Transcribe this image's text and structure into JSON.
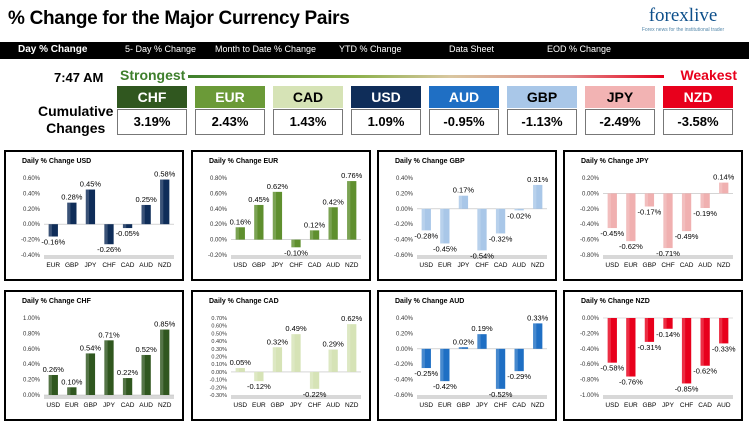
{
  "header": {
    "title": "% Change for the Major Currency Pairs",
    "logo_text": "forexlive",
    "logo_tagline": "Forex news for the institutional trader"
  },
  "tabs": [
    {
      "label": "Day % Change",
      "active": true
    },
    {
      "label": "5- Day % Change",
      "active": false
    },
    {
      "label": "Month to Date % Change",
      "active": false
    },
    {
      "label": "YTD % Change",
      "active": false
    },
    {
      "label": "Data Sheet",
      "active": false
    },
    {
      "label": "EOD % Change",
      "active": false
    }
  ],
  "summary": {
    "time": "7:47 AM",
    "strongest_label": "Strongest",
    "weakest_label": "Weakest",
    "cumulative_label_line1": "Cumulative",
    "cumulative_label_line2": "Changes",
    "rankings": [
      {
        "currency": "CHF",
        "value": "3.19%",
        "color": "#30571f"
      },
      {
        "currency": "EUR",
        "value": "2.43%",
        "color": "#6b9a38"
      },
      {
        "currency": "CAD",
        "value": "1.43%",
        "color": "#d6e3b6"
      },
      {
        "currency": "USD",
        "value": "1.09%",
        "color": "#0f2d59"
      },
      {
        "currency": "AUD",
        "value": "-0.95%",
        "color": "#1f6fc4"
      },
      {
        "currency": "GBP",
        "value": "-1.13%",
        "color": "#a9c7e8"
      },
      {
        "currency": "JPY",
        "value": "-2.49%",
        "color": "#f2b3b3"
      },
      {
        "currency": "NZD",
        "value": "-3.58%",
        "color": "#e8001c"
      }
    ]
  },
  "chart_data": [
    {
      "type": "bar",
      "title": "Daily % Change USD",
      "categories": [
        "EUR",
        "GBP",
        "JPY",
        "CHF",
        "CAD",
        "AUD",
        "NZD"
      ],
      "values": [
        -0.16,
        0.28,
        0.45,
        -0.26,
        -0.05,
        0.25,
        0.58
      ],
      "ylim": [
        -0.4,
        0.6
      ],
      "yticks": [
        "-0.40%",
        "-0.20%",
        "0.00%",
        "0.20%",
        "0.40%",
        "0.60%"
      ],
      "colors": {
        "pos": "#0f2d59",
        "neg": "#0f2d59"
      }
    },
    {
      "type": "bar",
      "title": "Daily % Change EUR",
      "categories": [
        "USD",
        "GBP",
        "JPY",
        "CHF",
        "CAD",
        "AUD",
        "NZD"
      ],
      "values": [
        0.16,
        0.45,
        0.62,
        -0.1,
        0.12,
        0.42,
        0.76
      ],
      "ylim": [
        -0.2,
        0.8
      ],
      "yticks": [
        "-0.20%",
        "0.00%",
        "0.20%",
        "0.40%",
        "0.60%",
        "0.80%"
      ],
      "colors": {
        "pos": "#5f8f2e",
        "neg": "#5f8f2e"
      }
    },
    {
      "type": "bar",
      "title": "Daily % Change GBP",
      "categories": [
        "USD",
        "EUR",
        "JPY",
        "CHF",
        "CAD",
        "AUD",
        "NZD"
      ],
      "values": [
        -0.28,
        -0.45,
        0.17,
        -0.54,
        -0.32,
        -0.02,
        0.31
      ],
      "ylim": [
        -0.6,
        0.4
      ],
      "yticks": [
        "-0.60%",
        "-0.40%",
        "-0.20%",
        "0.00%",
        "0.20%",
        "0.40%"
      ],
      "colors": {
        "pos": "#a9c7e8",
        "neg": "#a9c7e8"
      }
    },
    {
      "type": "bar",
      "title": "Daily % Change JPY",
      "categories": [
        "USD",
        "EUR",
        "GBP",
        "CHF",
        "CAD",
        "AUD",
        "NZD"
      ],
      "values": [
        -0.45,
        -0.62,
        -0.17,
        -0.71,
        -0.49,
        -0.19,
        0.14
      ],
      "ylim": [
        -0.8,
        0.2
      ],
      "yticks": [
        "-0.80%",
        "-0.60%",
        "-0.40%",
        "-0.20%",
        "0.00%",
        "0.20%"
      ],
      "colors": {
        "pos": "#f0b0b0",
        "neg": "#f0b0b0"
      }
    },
    {
      "type": "bar",
      "title": "Daily % Change CHF",
      "categories": [
        "USD",
        "EUR",
        "GBP",
        "JPY",
        "CAD",
        "AUD",
        "NZD"
      ],
      "values": [
        0.26,
        0.1,
        0.54,
        0.71,
        0.22,
        0.52,
        0.85
      ],
      "ylim": [
        0,
        1.0
      ],
      "yticks": [
        "0.00%",
        "0.20%",
        "0.40%",
        "0.60%",
        "0.80%",
        "1.00%"
      ],
      "colors": {
        "pos": "#30571f",
        "neg": "#30571f"
      }
    },
    {
      "type": "bar",
      "title": "Daily % Change CAD",
      "categories": [
        "USD",
        "EUR",
        "GBP",
        "JPY",
        "CHF",
        "AUD",
        "NZD"
      ],
      "values": [
        0.05,
        -0.12,
        0.32,
        0.49,
        -0.22,
        0.29,
        0.62
      ],
      "ylim": [
        -0.3,
        0.7
      ],
      "yticks": [
        "-0.30%",
        "-0.20%",
        "-0.10%",
        "0.00%",
        "0.10%",
        "0.20%",
        "0.30%",
        "0.40%",
        "0.50%",
        "0.60%",
        "0.70%"
      ],
      "colors": {
        "pos": "#d6e3b6",
        "neg": "#d6e3b6"
      }
    },
    {
      "type": "bar",
      "title": "Daily % Change AUD",
      "categories": [
        "USD",
        "EUR",
        "GBP",
        "JPY",
        "CHF",
        "CAD",
        "NZD"
      ],
      "values": [
        -0.25,
        -0.42,
        0.02,
        0.19,
        -0.52,
        -0.29,
        0.33
      ],
      "ylim": [
        -0.6,
        0.4
      ],
      "yticks": [
        "-0.60%",
        "-0.40%",
        "-0.20%",
        "0.00%",
        "0.20%",
        "0.40%"
      ],
      "colors": {
        "pos": "#1f6fc4",
        "neg": "#1f6fc4"
      }
    },
    {
      "type": "bar",
      "title": "Daily % Change NZD",
      "categories": [
        "USD",
        "EUR",
        "GBP",
        "JPY",
        "CHF",
        "CAD",
        "AUD"
      ],
      "values": [
        -0.58,
        -0.76,
        -0.31,
        -0.14,
        -0.85,
        -0.62,
        -0.33
      ],
      "ylim": [
        -1.0,
        0
      ],
      "yticks": [
        "-1.00%",
        "-0.80%",
        "-0.60%",
        "-0.40%",
        "-0.20%",
        "0.00%"
      ],
      "colors": {
        "pos": "#e8001c",
        "neg": "#e8001c"
      }
    }
  ]
}
